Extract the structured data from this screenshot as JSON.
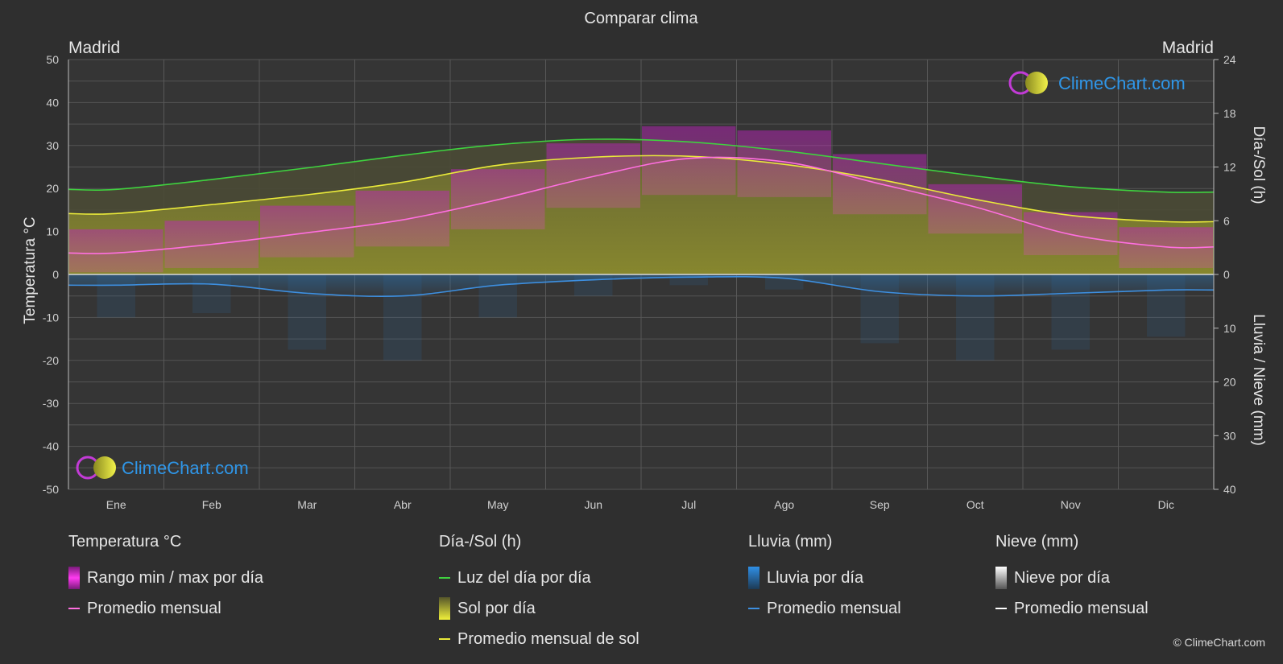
{
  "chart_data": {
    "type": "area",
    "title": "Comparar clima",
    "location_left": "Madrid",
    "location_right": "Madrid",
    "categories": [
      "Ene",
      "Feb",
      "Mar",
      "Abr",
      "May",
      "Jun",
      "Jul",
      "Ago",
      "Sep",
      "Oct",
      "Nov",
      "Dic"
    ],
    "y_left": {
      "label": "Temperatura °C",
      "ticks": [
        "50",
        "40",
        "30",
        "20",
        "10",
        "0",
        "-10",
        "-20",
        "-30",
        "-40",
        "-50"
      ],
      "ylim": [
        -50,
        50
      ]
    },
    "y_right_top": {
      "label": "Día-/Sol (h)",
      "ticks": [
        "24",
        "18",
        "12",
        "6",
        "0"
      ],
      "ylim": [
        0,
        24
      ]
    },
    "y_right_bottom": {
      "label": "Lluvia / Nieve (mm)",
      "ticks": [
        "10",
        "20",
        "30",
        "40"
      ],
      "ylim": [
        0,
        40
      ]
    },
    "grid": true,
    "series": [
      {
        "name": "Luz del día por día",
        "axis": "hours",
        "color": "#3fd23f",
        "values": [
          9.5,
          10.6,
          11.9,
          13.3,
          14.5,
          15.1,
          14.8,
          13.8,
          12.4,
          11.0,
          9.8,
          9.2
        ]
      },
      {
        "name": "Promedio mensual de sol",
        "axis": "hours",
        "color": "#eaea3a",
        "values": [
          6.8,
          7.8,
          8.9,
          10.3,
          12.2,
          13.1,
          13.2,
          12.3,
          10.6,
          8.4,
          6.6,
          5.9
        ]
      },
      {
        "name": "Sol por día",
        "axis": "hours",
        "color": "#8f8f2a",
        "values": [
          6.8,
          7.8,
          8.9,
          10.3,
          12.2,
          13.1,
          13.2,
          12.3,
          10.6,
          8.4,
          6.6,
          5.9
        ]
      },
      {
        "name": "Promedio mensual",
        "group": "Temperatura °C",
        "axis": "temp",
        "color": "#ff6fe0",
        "values": [
          5.0,
          7.0,
          9.7,
          12.7,
          17.4,
          22.8,
          27.0,
          26.2,
          21.1,
          15.7,
          9.3,
          6.4
        ]
      },
      {
        "name": "Rango min / max por día",
        "axis": "temp",
        "color": "#d92ad1",
        "min": [
          0.5,
          1.5,
          4.0,
          6.5,
          10.5,
          15.5,
          18.5,
          18.0,
          14.0,
          9.5,
          4.5,
          1.5
        ],
        "max": [
          10.5,
          12.5,
          16.0,
          19.5,
          24.5,
          30.5,
          34.5,
          33.5,
          28.0,
          21.0,
          14.5,
          11.0
        ]
      },
      {
        "name": "Promedio mensual",
        "group": "Lluvia (mm)",
        "axis": "precip",
        "color": "#3d8fe0",
        "values": [
          2.0,
          1.8,
          3.5,
          4.0,
          2.0,
          1.0,
          0.5,
          0.7,
          3.2,
          4.0,
          3.5,
          2.9
        ]
      }
    ]
  },
  "legend": {
    "temp": {
      "title": "Temperatura °C",
      "items": [
        {
          "label": "Rango min / max por día",
          "color": "#d92ad1"
        },
        {
          "label": "Promedio mensual",
          "color": "#ff6fe0"
        }
      ]
    },
    "sun": {
      "title": "Día-/Sol (h)",
      "items": [
        {
          "label": "Luz del día por día",
          "color": "#3fd23f"
        },
        {
          "label": "Sol por día",
          "color": "#c8c83a"
        },
        {
          "label": "Promedio mensual de sol",
          "color": "#eaea3a"
        }
      ]
    },
    "rain": {
      "title": "Lluvia (mm)",
      "items": [
        {
          "label": "Lluvia por día",
          "color": "#2f86d6"
        },
        {
          "label": "Promedio mensual",
          "color": "#3d8fe0"
        }
      ]
    },
    "snow": {
      "title": "Nieve (mm)",
      "items": [
        {
          "label": "Nieve por día",
          "color": "#dddddd"
        },
        {
          "label": "Promedio mensual",
          "color": "#ffffff"
        }
      ]
    }
  },
  "watermark": {
    "text": "ClimeChart.com"
  },
  "copyright": "© ClimeChart.com"
}
